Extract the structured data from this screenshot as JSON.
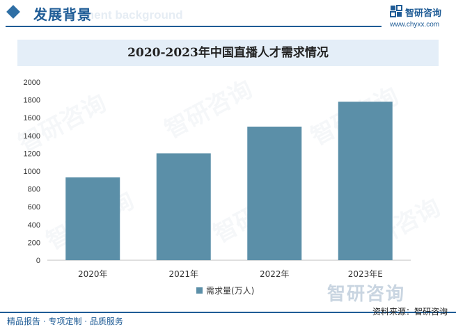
{
  "header": {
    "section_title": "发展背景",
    "section_subtitle": "ment background",
    "brand_name": "智研咨询",
    "brand_url": "www.chyxx.com"
  },
  "watermark": {
    "text": "智研咨询"
  },
  "footer": {
    "left_text": "精品报告 · 专项定制 · 品质服务",
    "source_text": "资料来源：智研咨询"
  },
  "colors": {
    "bar": "#5b8fa8",
    "brand": "#1f5c96",
    "title_band": "#e4eef8"
  },
  "chart_data": {
    "type": "bar",
    "title": "2020-2023年中国直播人才需求情况",
    "categories": [
      "2020年",
      "2021年",
      "2022年",
      "2023年E"
    ],
    "series": [
      {
        "name": "需求量(万人)",
        "values": [
          930,
          1200,
          1500,
          1780
        ]
      }
    ],
    "ylim": [
      0,
      2000
    ],
    "yticks": [
      0,
      200,
      400,
      600,
      800,
      1000,
      1200,
      1400,
      1600,
      1800,
      2000
    ],
    "grid": false,
    "legend": "bottom-center"
  }
}
